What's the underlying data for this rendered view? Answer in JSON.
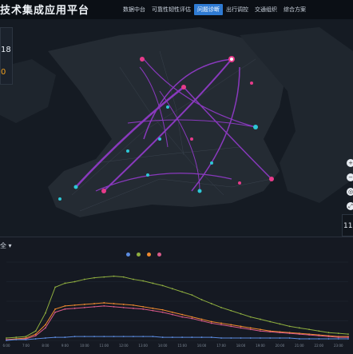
{
  "header": {
    "title": "技术集成应用平台",
    "nav": [
      {
        "label": "数据中台",
        "active": false
      },
      {
        "label": "可靠性韧性评估",
        "active": false
      },
      {
        "label": "问题诊断",
        "active": true
      },
      {
        "label": "出行调控",
        "active": false
      },
      {
        "label": "交通组织",
        "active": false
      },
      {
        "label": "综合方案",
        "active": false
      }
    ]
  },
  "left_stats": {
    "value1": "18",
    "value2": "0"
  },
  "map_controls": {
    "buttons": [
      "+",
      "−",
      "◎",
      "⤢"
    ],
    "scale_value": "11"
  },
  "panel": {
    "selector_label": "全 ▾"
  },
  "chart_data": {
    "type": "line",
    "x": [
      "6:00",
      "6:30",
      "7:00",
      "7:30",
      "8:00",
      "8:30",
      "9:00",
      "9:30",
      "10:00",
      "10:30",
      "11:00",
      "11:30",
      "12:00",
      "12:30",
      "13:00",
      "13:30",
      "14:00",
      "14:30",
      "15:00",
      "15:30",
      "16:00",
      "16:30",
      "17:00",
      "17:30",
      "18:00",
      "18:30",
      "19:00",
      "19:30",
      "20:00",
      "20:30",
      "21:00",
      "21:30",
      "22:00",
      "22:30",
      "23:00",
      "23:30"
    ],
    "series": [
      {
        "color": "#8fae3f",
        "values": [
          3,
          4,
          5,
          12,
          35,
          68,
          73,
          75,
          78,
          80,
          81,
          82,
          81,
          78,
          76,
          73,
          70,
          66,
          62,
          58,
          52,
          47,
          42,
          38,
          34,
          30,
          27,
          24,
          21,
          18,
          16,
          14,
          12,
          10,
          9,
          8
        ]
      },
      {
        "color": "#ef8a2e",
        "values": [
          1,
          2,
          3,
          8,
          20,
          40,
          44,
          45,
          46,
          47,
          48,
          47,
          46,
          45,
          43,
          41,
          39,
          36,
          33,
          30,
          27,
          24,
          22,
          20,
          18,
          16,
          14,
          12,
          11,
          10,
          9,
          8,
          7,
          6,
          5,
          5
        ]
      },
      {
        "color": "#d85a8a",
        "values": [
          1,
          1,
          2,
          6,
          16,
          36,
          40,
          41,
          42,
          43,
          44,
          43,
          42,
          41,
          40,
          38,
          36,
          33,
          30,
          28,
          25,
          22,
          20,
          18,
          16,
          14,
          12,
          11,
          10,
          9,
          8,
          7,
          6,
          5,
          4,
          4
        ]
      },
      {
        "color": "#5b8be0",
        "values": [
          0,
          1,
          1,
          2,
          3,
          4,
          4,
          5,
          5,
          5,
          5,
          5,
          5,
          5,
          5,
          5,
          4,
          4,
          4,
          4,
          4,
          4,
          3,
          3,
          3,
          3,
          3,
          3,
          3,
          3,
          2,
          2,
          2,
          2,
          2,
          2
        ]
      }
    ],
    "ylim": [
      0,
      100
    ]
  }
}
